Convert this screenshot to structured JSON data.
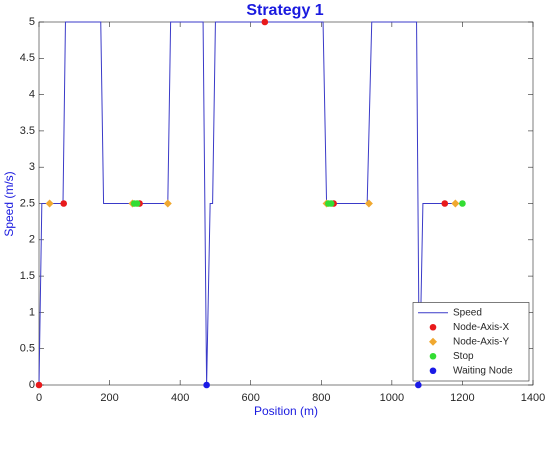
{
  "chart_data": {
    "type": "line",
    "title": "Strategy 1",
    "x_label": "Position (m)",
    "y_label": "Speed (m/s)",
    "xlim": [
      0,
      1400
    ],
    "xticks": [
      0,
      200,
      400,
      600,
      800,
      1000,
      1200,
      1400
    ],
    "ylim": [
      0,
      5
    ],
    "yticks": [
      0,
      0.5,
      1,
      1.5,
      2,
      2.5,
      3,
      3.5,
      4,
      4.5,
      5
    ],
    "legend": "lower right",
    "series": [
      {
        "name": "Speed",
        "color": "#3a3ac8",
        "marker": null,
        "x": [
          0,
          8,
          68,
          75,
          175,
          183,
          365,
          373,
          465,
          475,
          485,
          492,
          500,
          805,
          815,
          930,
          943,
          1070,
          1078,
          1088,
          1200
        ],
        "values": [
          0,
          2.5,
          2.5,
          5,
          5,
          2.5,
          2.5,
          5,
          5,
          0,
          2.5,
          2.5,
          5,
          5,
          2.5,
          2.5,
          5,
          5,
          0,
          2.5,
          2.5
        ]
      },
      {
        "name": "Node-Axis-X",
        "color": "#e8191b",
        "marker": "circle",
        "x": [
          0,
          70,
          285,
          640,
          835,
          1150
        ],
        "values": [
          0,
          2.5,
          2.5,
          5,
          2.5,
          2.5
        ]
      },
      {
        "name": "Node-Axis-Y",
        "color": "#f0a830",
        "marker": "diamond",
        "x": [
          30,
          265,
          365,
          815,
          935,
          1180
        ],
        "values": [
          2.5,
          2.5,
          2.5,
          2.5,
          2.5,
          2.5
        ]
      },
      {
        "name": "Stop",
        "color": "#33dd33",
        "marker": "circle",
        "x": [
          270,
          278,
          820,
          828,
          1200
        ],
        "values": [
          2.5,
          2.5,
          2.5,
          2.5,
          2.5
        ]
      },
      {
        "name": "Waiting Node",
        "color": "#1a1ae6",
        "marker": "circle",
        "x": [
          475,
          1075
        ],
        "values": [
          0,
          0
        ]
      }
    ]
  }
}
